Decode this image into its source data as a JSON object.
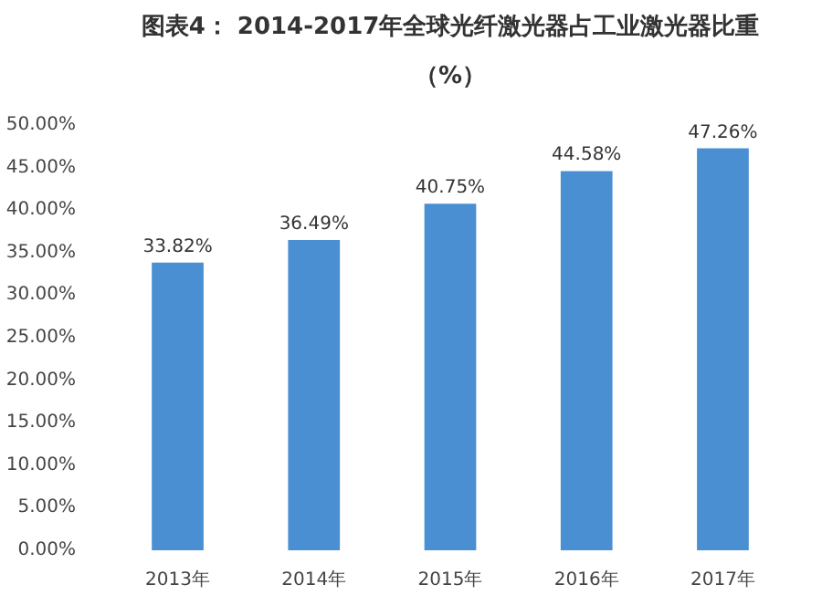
{
  "chart_data": {
    "type": "bar",
    "title": "图表4： 2014-2017年全球光纤激光器占工业激光器比重",
    "subtitle": "（%）",
    "categories": [
      "2013年",
      "2014年",
      "2015年",
      "2016年",
      "2017年"
    ],
    "values": [
      33.82,
      36.49,
      40.75,
      44.58,
      47.26
    ],
    "value_labels": [
      "33.82%",
      "36.49%",
      "40.75%",
      "44.58%",
      "47.26%"
    ],
    "color": "#4a8fd2",
    "ylim": [
      0,
      50
    ],
    "yticks": [
      {
        "value": 0,
        "label": "0.00%"
      },
      {
        "value": 5,
        "label": "5.00%"
      },
      {
        "value": 10,
        "label": "10.00%"
      },
      {
        "value": 15,
        "label": "15.00%"
      },
      {
        "value": 20,
        "label": "20.00%"
      },
      {
        "value": 25,
        "label": "25.00%"
      },
      {
        "value": 30,
        "label": "30.00%"
      },
      {
        "value": 35,
        "label": "35.00%"
      },
      {
        "value": 40,
        "label": "40.00%"
      },
      {
        "value": 45,
        "label": "45.00%"
      },
      {
        "value": 50,
        "label": "50.00%"
      }
    ],
    "grid": false
  }
}
